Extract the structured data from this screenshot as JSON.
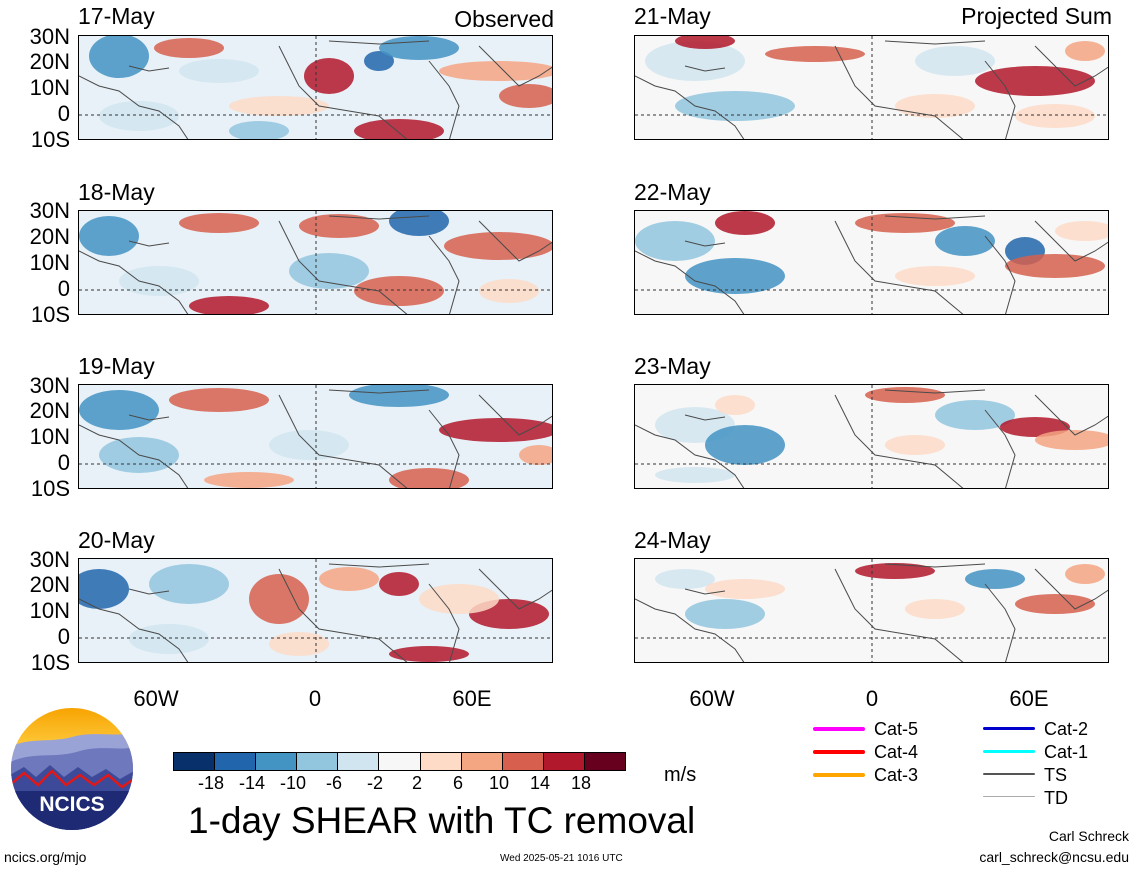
{
  "header": {
    "left_label": "Observed",
    "right_label": "Projected Sum"
  },
  "panels": [
    {
      "date": "17-May",
      "side": "observed"
    },
    {
      "date": "18-May",
      "side": "observed"
    },
    {
      "date": "19-May",
      "side": "observed"
    },
    {
      "date": "20-May",
      "side": "observed"
    },
    {
      "date": "21-May",
      "side": "projected"
    },
    {
      "date": "22-May",
      "side": "projected"
    },
    {
      "date": "23-May",
      "side": "projected"
    },
    {
      "date": "24-May",
      "side": "projected"
    }
  ],
  "axes": {
    "lat_labels": [
      "30N",
      "20N",
      "10N",
      "0",
      "10S"
    ],
    "lon_labels": [
      "60W",
      "0",
      "60E"
    ]
  },
  "colorbar": {
    "ticks": [
      "-18",
      "-14",
      "-10",
      "-6",
      "-2",
      "2",
      "6",
      "10",
      "14",
      "18"
    ],
    "colors": [
      "#08306b",
      "#2166ac",
      "#4393c3",
      "#92c5de",
      "#d1e5f0",
      "#f7f7f7",
      "#fddbc7",
      "#f4a582",
      "#d6604d",
      "#b2182b",
      "#67001f"
    ],
    "units": "m/s"
  },
  "title": "1-day SHEAR with TC removal",
  "legend": [
    {
      "label": "Cat-5",
      "color": "#ff00ff"
    },
    {
      "label": "Cat-4",
      "color": "#ff0000"
    },
    {
      "label": "Cat-3",
      "color": "#ffa500"
    },
    {
      "label": "Cat-2",
      "color": "#0000cd"
    },
    {
      "label": "Cat-1",
      "color": "#00ffff"
    },
    {
      "label": "TS",
      "color": "#555555"
    },
    {
      "label": "TD",
      "color": "#aaaaaa"
    }
  ],
  "logo": {
    "text": "NCICS"
  },
  "footer": {
    "url": "ncics.org/mjo",
    "timestamp": "Wed 2025-05-21 1016 UTC",
    "author": "Carl Schreck",
    "email": "carl_schreck@ncsu.edu"
  }
}
